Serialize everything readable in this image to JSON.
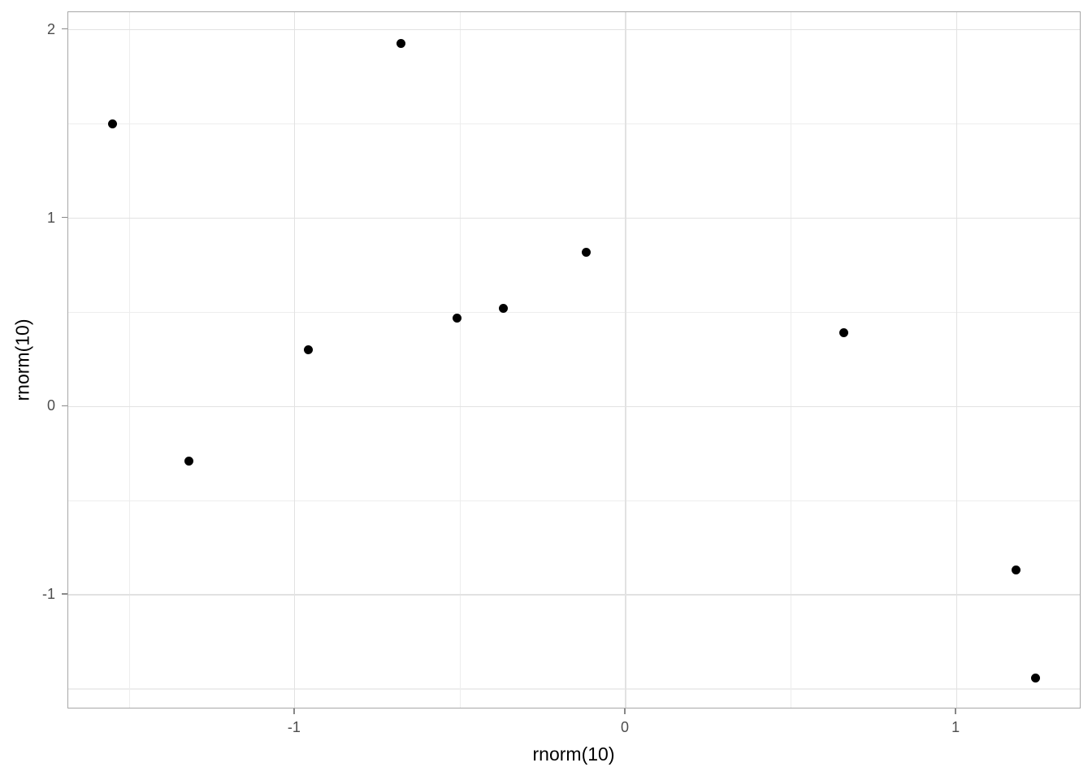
{
  "chart_data": {
    "type": "scatter",
    "title": "",
    "xlabel": "rnorm(10)",
    "ylabel": "rnorm(10)",
    "xlim": [
      -1.685,
      1.378
    ],
    "ylim": [
      -1.608,
      2.094
    ],
    "x_major_ticks": [
      -1,
      0,
      1
    ],
    "x_tick_labels": [
      "-1",
      "0",
      "1"
    ],
    "x_minor_ticks": [
      -1.5,
      -0.5,
      0.5,
      1.5
    ],
    "y_major_ticks": [
      -1,
      0,
      1,
      2
    ],
    "y_tick_labels": [
      "-1",
      "0",
      "1",
      "2"
    ],
    "y_minor_ticks": [
      -1.5,
      -0.5,
      0.5,
      1.5
    ],
    "grid": "major+minor",
    "legend_position": "none",
    "points": [
      {
        "x": -1.55,
        "y": 1.5
      },
      {
        "x": -1.32,
        "y": -0.29
      },
      {
        "x": -0.96,
        "y": 0.3
      },
      {
        "x": -0.68,
        "y": 1.93
      },
      {
        "x": -0.51,
        "y": 0.47
      },
      {
        "x": -0.37,
        "y": 0.52
      },
      {
        "x": -0.12,
        "y": 0.82
      },
      {
        "x": 0.66,
        "y": 0.39
      },
      {
        "x": 1.18,
        "y": -0.87
      },
      {
        "x": 1.24,
        "y": -1.44
      }
    ]
  },
  "style": {
    "background": "#ffffff",
    "panel_border_color": "#a8a8a8",
    "grid_major_color": "#e2e2e2",
    "grid_minor_color": "#ededed",
    "tick_mark_color": "#888888",
    "tick_label_color": "#4d4d4d",
    "axis_title_color": "#000000",
    "point_color": "#000000"
  }
}
